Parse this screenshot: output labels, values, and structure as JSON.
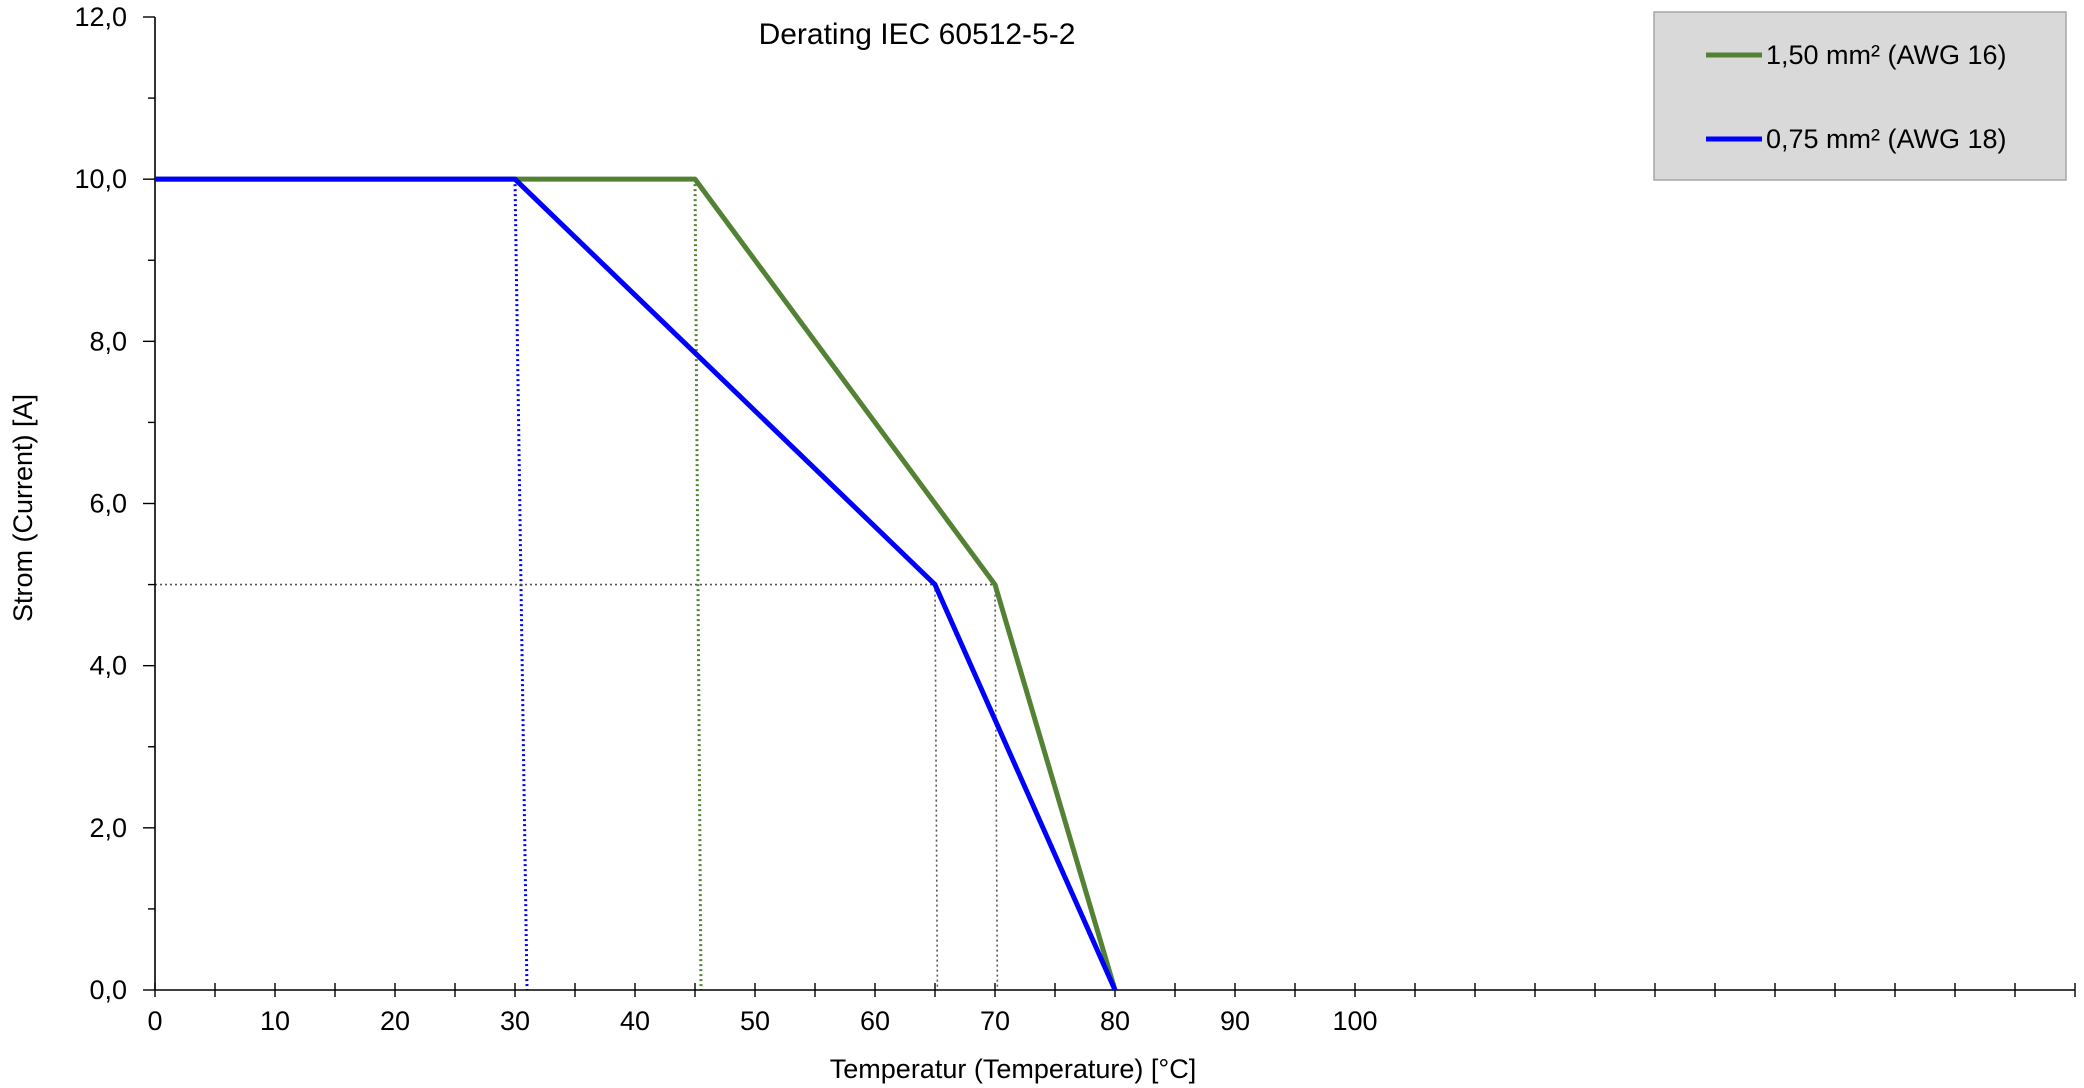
{
  "chart_data": {
    "type": "line",
    "title": "Derating IEC 60512-5-2",
    "xlabel": "Temperatur (Temperature) [°C]",
    "ylabel": "Strom (Current) [A]",
    "xlim": [
      0,
      160
    ],
    "ylim": [
      0,
      12
    ],
    "x_ticks": [
      0,
      10,
      20,
      30,
      40,
      50,
      60,
      70,
      80,
      90,
      100
    ],
    "x_tick_labels": [
      "0",
      "10",
      "20",
      "30",
      "40",
      "50",
      "60",
      "70",
      "80",
      "90",
      "100"
    ],
    "x_minor_step": 5,
    "y_ticks": [
      0,
      2,
      4,
      6,
      8,
      10,
      12
    ],
    "y_tick_labels": [
      "0,0",
      "2,0",
      "4,0",
      "6,0",
      "8,0",
      "10,0",
      "12,0"
    ],
    "y_minor_step": 1,
    "grid": false,
    "legend_position": "top-right",
    "series": [
      {
        "name": "1,50 mm² (AWG 16)",
        "color": "#548235",
        "points": [
          [
            0,
            10
          ],
          [
            45,
            10
          ],
          [
            70,
            5
          ],
          [
            80,
            0
          ]
        ]
      },
      {
        "name": "0,75 mm² (AWG 18)",
        "color": "#0000ff",
        "points": [
          [
            0,
            10
          ],
          [
            30,
            10
          ],
          [
            65,
            5
          ],
          [
            80,
            0
          ]
        ]
      }
    ],
    "reference_lines": [
      {
        "color": "#0000ff",
        "points": [
          [
            30,
            10
          ],
          [
            31,
            0
          ]
        ],
        "style": "dotted"
      },
      {
        "color": "#548235",
        "points": [
          [
            45,
            10
          ],
          [
            45.5,
            0
          ]
        ],
        "style": "dotted"
      },
      {
        "color": "#555555",
        "points": [
          [
            0,
            5
          ],
          [
            70,
            5
          ]
        ],
        "style": "dotted"
      },
      {
        "color": "#555555",
        "points": [
          [
            65,
            5
          ],
          [
            65.2,
            0
          ]
        ],
        "style": "dotted"
      },
      {
        "color": "#555555",
        "points": [
          [
            70,
            5
          ],
          [
            70.2,
            0
          ]
        ],
        "style": "dotted"
      }
    ]
  }
}
